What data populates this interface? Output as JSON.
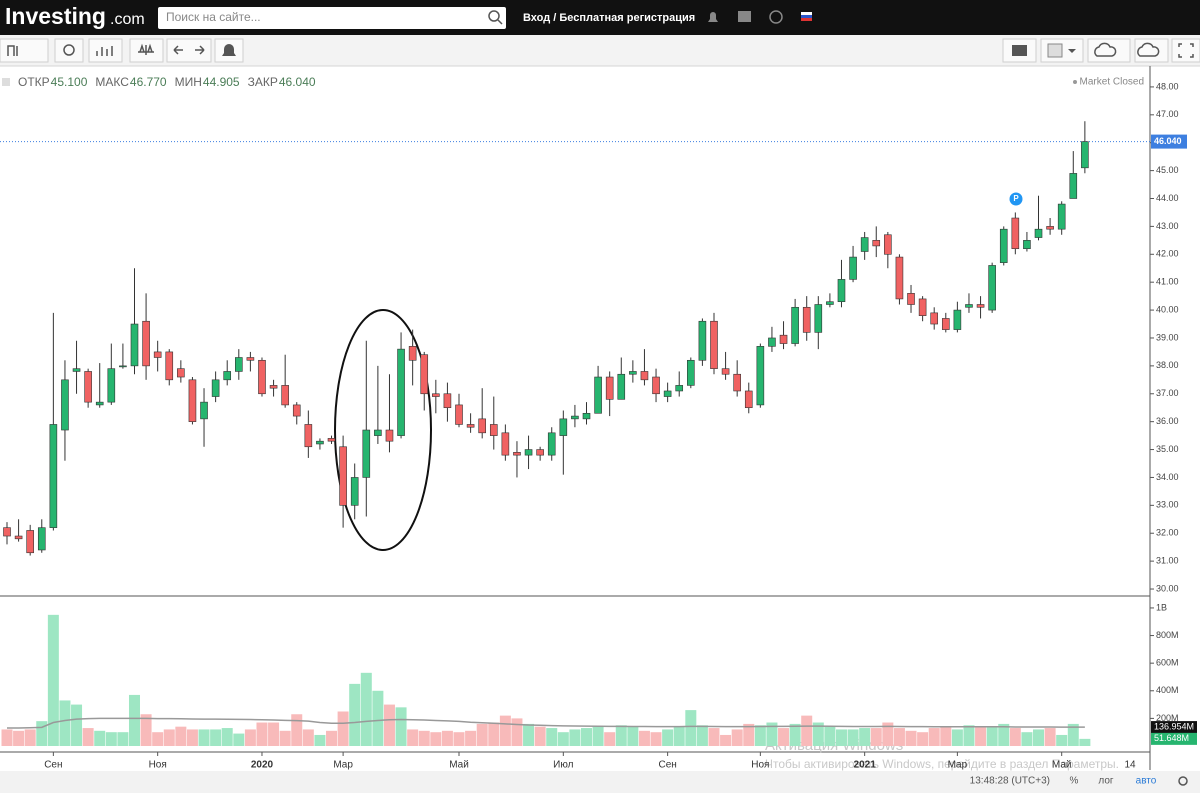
{
  "header": {
    "logo": "Investing",
    "logo_suffix": ".com",
    "search_placeholder": "Поиск на сайте...",
    "login": "Вход / Бесплатная регистрация"
  },
  "info": {
    "fields": [
      {
        "name": "ОТКР",
        "value": "45.100"
      },
      {
        "name": "МАКС",
        "value": "46.770"
      },
      {
        "name": "МИН",
        "value": "44.905"
      },
      {
        "name": "ЗАКР",
        "value": "46.040"
      }
    ],
    "status": "Market Closed"
  },
  "annotations": {
    "marker": "P"
  },
  "watermark": {
    "title": "Активация Windows",
    "text": "Чтобы активировать Windows, перейдите в раздел Параметры."
  },
  "footer": {
    "time": "13:48:28 (UTC+3)",
    "percent": "%",
    "log": "лог",
    "auto": "авто"
  },
  "chart_data": {
    "type": "candlestick",
    "categories": [
      null,
      null,
      null,
      null,
      "Сен",
      null,
      null,
      null,
      null,
      null,
      null,
      null,
      null,
      "Ноя",
      null,
      null,
      null,
      null,
      null,
      null,
      null,
      null,
      "2020",
      null,
      null,
      null,
      null,
      null,
      null,
      "Мар",
      null,
      null,
      null,
      null,
      null,
      null,
      null,
      null,
      null,
      "Май",
      null,
      null,
      null,
      null,
      null,
      null,
      null,
      null,
      "Июл",
      null,
      null,
      null,
      null,
      null,
      null,
      null,
      null,
      "Сен",
      null,
      null,
      null,
      null,
      null,
      null,
      null,
      "Ноя",
      null,
      null,
      null,
      null,
      null,
      null,
      null,
      null,
      "2021",
      null,
      null,
      null,
      null,
      null,
      null,
      null,
      "Мар",
      null,
      null,
      null,
      null,
      null,
      null,
      null,
      null,
      "Май",
      null,
      null
    ],
    "x_end_label": "14",
    "open": [
      32.2,
      31.9,
      32.1,
      31.4,
      32.2,
      35.7,
      37.8,
      37.8,
      36.6,
      36.7,
      38.0,
      38.0,
      39.6,
      38.5,
      38.5,
      37.9,
      37.5,
      36.1,
      36.9,
      37.5,
      37.8,
      38.3,
      38.2,
      37.3,
      37.3,
      36.6,
      35.9,
      35.2,
      35.4,
      35.1,
      33.0,
      34.0,
      35.5,
      35.7,
      35.5,
      38.7,
      38.4,
      37.0,
      37.0,
      36.6,
      35.9,
      36.1,
      35.9,
      35.6,
      34.9,
      34.8,
      35.0,
      34.8,
      35.5,
      36.1,
      36.1,
      36.3,
      37.6,
      36.8,
      37.7,
      37.8,
      37.6,
      36.9,
      37.1,
      37.3,
      38.2,
      39.6,
      37.9,
      37.7,
      37.1,
      36.6,
      38.7,
      39.1,
      38.8,
      40.1,
      39.2,
      40.2,
      40.3,
      41.1,
      42.1,
      42.5,
      42.7,
      41.9,
      40.6,
      40.4,
      39.9,
      39.7,
      39.3,
      40.1,
      40.2,
      40.0,
      41.7,
      43.3,
      42.2,
      42.6,
      43.0,
      42.9,
      44.0,
      45.1
    ],
    "high": [
      32.4,
      32.5,
      32.3,
      32.5,
      39.9,
      38.2,
      38.9,
      37.9,
      38.1,
      38.8,
      38.8,
      41.5,
      40.6,
      38.9,
      38.6,
      38.2,
      37.6,
      37.2,
      37.8,
      38.2,
      38.6,
      38.5,
      38.3,
      37.5,
      38.4,
      36.7,
      36.4,
      35.4,
      35.5,
      35.5,
      34.5,
      38.9,
      38.0,
      37.7,
      39.2,
      39.3,
      38.5,
      37.5,
      37.4,
      37.0,
      36.3,
      37.2,
      36.9,
      35.9,
      35.3,
      35.5,
      35.1,
      35.8,
      36.4,
      36.6,
      36.7,
      38.0,
      37.8,
      38.3,
      38.2,
      38.6,
      37.9,
      37.4,
      37.8,
      38.3,
      39.7,
      39.9,
      38.5,
      38.2,
      37.4,
      38.8,
      39.4,
      39.6,
      40.4,
      40.5,
      40.5,
      40.6,
      41.8,
      42.3,
      42.8,
      43.0,
      42.8,
      42.0,
      40.9,
      40.5,
      40.1,
      39.9,
      40.3,
      40.6,
      40.5,
      41.7,
      43.0,
      43.5,
      42.8,
      44.1,
      43.3,
      43.9,
      45.7,
      46.77
    ],
    "low": [
      31.6,
      31.7,
      31.2,
      31.3,
      32.1,
      34.6,
      37.0,
      36.5,
      36.5,
      36.6,
      37.9,
      37.7,
      37.5,
      37.8,
      37.3,
      37.4,
      35.9,
      35.1,
      36.7,
      37.3,
      37.5,
      37.8,
      36.9,
      36.9,
      36.5,
      35.9,
      34.7,
      35.0,
      35.2,
      32.2,
      32.5,
      32.6,
      35.2,
      34.9,
      35.4,
      37.3,
      36.4,
      36.3,
      36.0,
      35.8,
      35.6,
      35.4,
      35.0,
      34.6,
      34.0,
      34.3,
      34.6,
      34.6,
      34.1,
      35.8,
      35.9,
      36.3,
      36.2,
      36.8,
      37.4,
      37.3,
      36.7,
      36.7,
      36.9,
      37.2,
      38.0,
      37.7,
      37.5,
      36.9,
      36.3,
      36.5,
      38.5,
      38.6,
      38.7,
      38.9,
      38.6,
      40.1,
      40.1,
      41.0,
      41.8,
      41.9,
      41.5,
      40.2,
      39.9,
      39.6,
      39.3,
      39.2,
      39.2,
      39.9,
      39.7,
      39.9,
      41.6,
      42.0,
      42.1,
      42.5,
      42.7,
      42.7,
      44.0,
      44.905
    ],
    "close": [
      31.9,
      31.8,
      31.3,
      32.2,
      35.9,
      37.5,
      37.9,
      36.7,
      36.7,
      37.9,
      38.0,
      39.5,
      38.0,
      38.3,
      37.5,
      37.6,
      36.0,
      36.7,
      37.5,
      37.8,
      38.3,
      38.2,
      37.0,
      37.2,
      36.6,
      36.2,
      35.1,
      35.3,
      35.3,
      33.0,
      34.0,
      35.7,
      35.7,
      35.3,
      38.6,
      38.2,
      37.0,
      36.9,
      36.5,
      35.9,
      35.8,
      35.6,
      35.5,
      34.8,
      34.8,
      35.0,
      34.8,
      35.6,
      36.1,
      36.2,
      36.3,
      37.6,
      36.8,
      37.7,
      37.8,
      37.5,
      37.0,
      37.1,
      37.3,
      38.2,
      39.6,
      37.9,
      37.7,
      37.1,
      36.5,
      38.7,
      39.0,
      38.8,
      40.1,
      39.2,
      40.2,
      40.3,
      41.1,
      41.9,
      42.6,
      42.3,
      42.0,
      40.4,
      40.2,
      39.8,
      39.5,
      39.3,
      40.0,
      40.2,
      40.1,
      41.6,
      42.9,
      42.2,
      42.5,
      42.9,
      42.9,
      43.8,
      44.9,
      46.04
    ],
    "up_color": "#26b56f",
    "down_color": "#f06262",
    "ylim": [
      29.75,
      48.75
    ],
    "yticks": [
      {
        "value": 30,
        "label": "30.00"
      },
      {
        "value": 31,
        "label": "31.00"
      },
      {
        "value": 32,
        "label": "32.00"
      },
      {
        "value": 33,
        "label": "33.00"
      },
      {
        "value": 34,
        "label": "34.00"
      },
      {
        "value": 35,
        "label": "35.00"
      },
      {
        "value": 36,
        "label": "36.00"
      },
      {
        "value": 37,
        "label": "37.00"
      },
      {
        "value": 38,
        "label": "38.00"
      },
      {
        "value": 39,
        "label": "39.00"
      },
      {
        "value": 40,
        "label": "40.00"
      },
      {
        "value": 41,
        "label": "41.00"
      },
      {
        "value": 42,
        "label": "42.00"
      },
      {
        "value": 43,
        "label": "43.00"
      },
      {
        "value": 44,
        "label": "44.00"
      },
      {
        "value": 45,
        "label": "45.00"
      },
      {
        "value": 46,
        "label": "46.00"
      },
      {
        "value": 47,
        "label": "47.00"
      },
      {
        "value": 48,
        "label": "48.00"
      }
    ],
    "last_price": {
      "value": 46.04,
      "label": "46.040",
      "color": "#3d7fe0"
    },
    "volume": [
      120,
      110,
      120,
      180,
      950,
      330,
      300,
      130,
      110,
      100,
      100,
      370,
      230,
      100,
      120,
      140,
      120,
      120,
      120,
      130,
      90,
      120,
      170,
      170,
      110,
      230,
      120,
      80,
      110,
      250,
      450,
      530,
      400,
      300,
      280,
      120,
      110,
      100,
      110,
      100,
      110,
      160,
      170,
      220,
      200,
      160,
      140,
      130,
      100,
      120,
      130,
      140,
      100,
      150,
      140,
      110,
      100,
      120,
      140,
      260,
      150,
      130,
      80,
      120,
      160,
      150,
      170,
      130,
      160,
      220,
      170,
      140,
      120,
      120,
      130,
      130,
      170,
      130,
      110,
      100,
      130,
      140,
      120,
      150,
      140,
      140,
      160,
      130,
      100,
      120,
      130,
      80,
      160,
      51.648
    ],
    "volume_ma": [
      130,
      130,
      132,
      135,
      170,
      185,
      195,
      198,
      200,
      200,
      200,
      200,
      200,
      198,
      198,
      197,
      196,
      195,
      195,
      194,
      193,
      192,
      190,
      188,
      186,
      184,
      180,
      170,
      165,
      165,
      170,
      178,
      185,
      190,
      192,
      190,
      188,
      185,
      182,
      178,
      172,
      168,
      165,
      160,
      156,
      152,
      150,
      148,
      146,
      145,
      144,
      143,
      142,
      142,
      141,
      141,
      140,
      140,
      140,
      142,
      142,
      141,
      140,
      140,
      140,
      141,
      142,
      142,
      143,
      144,
      144,
      143,
      142,
      141,
      141,
      141,
      142,
      141,
      140,
      140,
      139,
      139,
      139,
      139,
      139,
      139,
      139,
      138,
      138,
      138,
      138,
      137,
      137,
      136.954
    ],
    "volume_up_color": "#9ee6c3",
    "volume_down_color": "#f8baba",
    "volume_ma_color": "#999999",
    "volume_ylim": [
      0,
      1072
    ],
    "volume_ticks": [
      {
        "value": 200,
        "label": "200M"
      },
      {
        "value": 400,
        "label": "400M"
      },
      {
        "value": 600,
        "label": "600M"
      },
      {
        "value": 800,
        "label": "800M"
      },
      {
        "value": 1000,
        "label": "1B"
      }
    ],
    "volume_labels": [
      {
        "value": 136.954,
        "label": "136.954M",
        "color": "#111111"
      },
      {
        "value": 51.648,
        "label": "51.648M",
        "color": "#26b56f"
      }
    ]
  }
}
